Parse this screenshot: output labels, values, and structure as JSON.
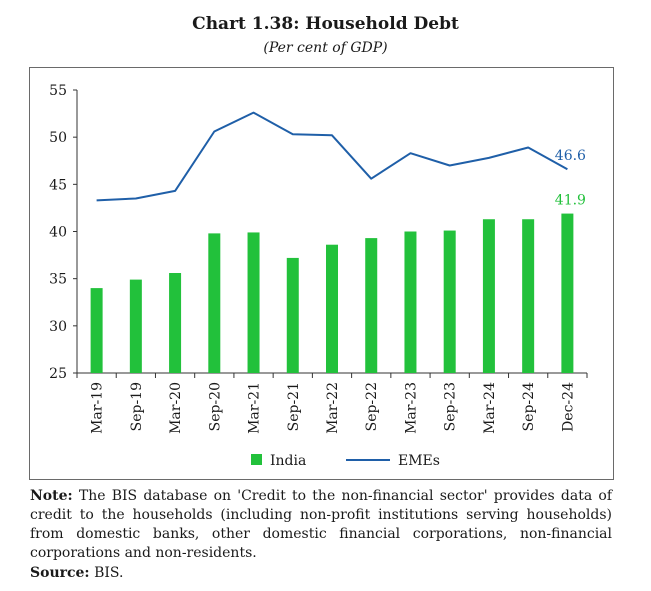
{
  "title": "Chart 1.38: Household Debt",
  "subtitle": "(Per cent of GDP)",
  "note_label": "Note:",
  "note_text": "The BIS database on 'Credit to the non-financial sector' provides data of credit to the households (including non-profit institutions serving households) from domestic banks, other domestic financial corporations, non-financial corporations and non-residents.",
  "source_label": "Source:",
  "source_text": "BIS.",
  "colors": {
    "india": "#22c13b",
    "emes": "#1f5fa8",
    "axis": "#333333"
  },
  "chart_data": {
    "type": "bar",
    "categories": [
      "Mar-19",
      "Sep-19",
      "Mar-20",
      "Sep-20",
      "Mar-21",
      "Sep-21",
      "Mar-22",
      "Sep-22",
      "Mar-23",
      "Sep-23",
      "Mar-24",
      "Sep-24",
      "Dec-24"
    ],
    "series": [
      {
        "name": "India",
        "type": "bar",
        "values": [
          34.0,
          34.9,
          35.6,
          39.8,
          39.9,
          37.2,
          38.6,
          39.3,
          40.0,
          40.1,
          41.3,
          41.3,
          41.9
        ]
      },
      {
        "name": "EMEs",
        "type": "line",
        "values": [
          43.3,
          43.5,
          44.3,
          50.6,
          52.6,
          50.3,
          50.2,
          45.6,
          48.3,
          47.0,
          47.8,
          48.9,
          46.6
        ]
      }
    ],
    "ylim": [
      25,
      55
    ],
    "yticks": [
      25,
      30,
      35,
      40,
      45,
      50,
      55
    ],
    "data_labels": [
      {
        "series": "EMEs",
        "category": "Dec-24",
        "text": "46.6"
      },
      {
        "series": "India",
        "category": "Dec-24",
        "text": "41.9"
      }
    ],
    "legend": "bottom",
    "grid": false
  }
}
